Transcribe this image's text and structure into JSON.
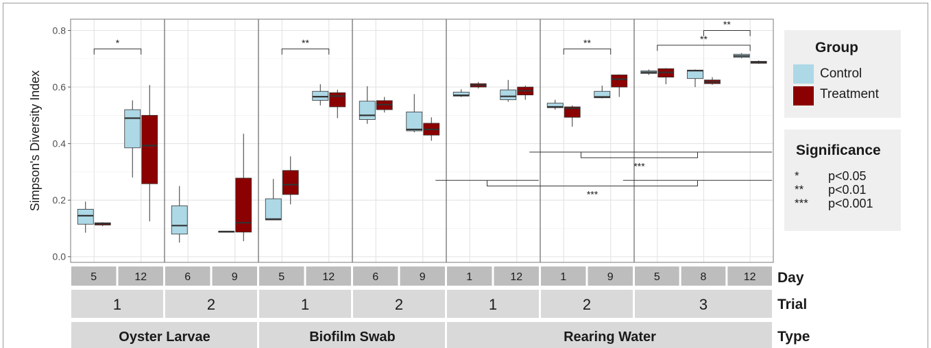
{
  "chart_data": {
    "type": "box",
    "ylabel": "Simpson's Diversity Index",
    "ylim": [
      -0.02,
      0.84
    ],
    "yticks": [
      "0.0",
      "0.2",
      "0.4",
      "0.6",
      "0.8"
    ],
    "ytick_values": [
      0.0,
      0.2,
      0.4,
      0.6,
      0.8
    ],
    "grid": true,
    "strip_labels": {
      "day": "Day",
      "trial": "Trial",
      "type": "Type"
    },
    "types": [
      {
        "name": "Oyster Larvae",
        "trials": [
          "1",
          "2"
        ]
      },
      {
        "name": "Biofilm Swab",
        "trials": [
          "1",
          "2"
        ]
      },
      {
        "name": "Rearing Water",
        "trials": [
          "1",
          "2",
          "3"
        ]
      }
    ],
    "panels": [
      {
        "type": "Oyster Larvae",
        "trial": "1",
        "days": [
          "5",
          "12"
        ],
        "boxes": [
          {
            "day": "5",
            "group": "Control",
            "min": 0.085,
            "q1": 0.115,
            "median": 0.145,
            "q3": 0.168,
            "max": 0.195
          },
          {
            "day": "5",
            "group": "Treatment",
            "min": 0.108,
            "q1": 0.112,
            "median": 0.117,
            "q3": 0.12,
            "max": 0.122
          },
          {
            "day": "12",
            "group": "Control",
            "min": 0.28,
            "q1": 0.385,
            "median": 0.49,
            "q3": 0.52,
            "max": 0.553
          },
          {
            "day": "12",
            "group": "Treatment",
            "min": 0.125,
            "q1": 0.258,
            "median": 0.393,
            "q3": 0.5,
            "max": 0.607
          }
        ]
      },
      {
        "type": "Oyster Larvae",
        "trial": "2",
        "days": [
          "6",
          "9"
        ],
        "boxes": [
          {
            "day": "6",
            "group": "Control",
            "min": 0.05,
            "q1": 0.08,
            "median": 0.11,
            "q3": 0.18,
            "max": 0.25
          },
          {
            "day": "9",
            "group": "Control",
            "min": 0.087,
            "q1": 0.088,
            "median": 0.089,
            "q3": 0.09,
            "max": 0.091
          },
          {
            "day": "9",
            "group": "Treatment",
            "min": 0.055,
            "q1": 0.087,
            "median": 0.12,
            "q3": 0.278,
            "max": 0.435
          }
        ]
      },
      {
        "type": "Biofilm Swab",
        "trial": "1",
        "days": [
          "5",
          "12"
        ],
        "boxes": [
          {
            "day": "5",
            "group": "Control",
            "min": 0.13,
            "q1": 0.13,
            "median": 0.133,
            "q3": 0.205,
            "max": 0.275
          },
          {
            "day": "5",
            "group": "Treatment",
            "min": 0.185,
            "q1": 0.22,
            "median": 0.255,
            "q3": 0.305,
            "max": 0.355
          },
          {
            "day": "12",
            "group": "Control",
            "min": 0.535,
            "q1": 0.553,
            "median": 0.566,
            "q3": 0.585,
            "max": 0.61
          },
          {
            "day": "12",
            "group": "Treatment",
            "min": 0.49,
            "q1": 0.53,
            "median": 0.568,
            "q3": 0.58,
            "max": 0.59
          }
        ]
      },
      {
        "type": "Biofilm Swab",
        "trial": "2",
        "days": [
          "6",
          "9"
        ],
        "boxes": [
          {
            "day": "6",
            "group": "Control",
            "min": 0.47,
            "q1": 0.485,
            "median": 0.5,
            "q3": 0.55,
            "max": 0.603
          },
          {
            "day": "6",
            "group": "Treatment",
            "min": 0.51,
            "q1": 0.52,
            "median": 0.538,
            "q3": 0.552,
            "max": 0.565
          },
          {
            "day": "9",
            "group": "Control",
            "min": 0.44,
            "q1": 0.445,
            "median": 0.45,
            "q3": 0.512,
            "max": 0.575
          },
          {
            "day": "9",
            "group": "Treatment",
            "min": 0.41,
            "q1": 0.43,
            "median": 0.45,
            "q3": 0.472,
            "max": 0.493
          }
        ]
      },
      {
        "type": "Rearing Water",
        "trial": "1",
        "days": [
          "1",
          "12"
        ],
        "boxes": [
          {
            "day": "1",
            "group": "Control",
            "min": 0.565,
            "q1": 0.568,
            "median": 0.571,
            "q3": 0.582,
            "max": 0.592
          },
          {
            "day": "1",
            "group": "Treatment",
            "min": 0.595,
            "q1": 0.6,
            "median": 0.607,
            "q3": 0.612,
            "max": 0.618
          },
          {
            "day": "12",
            "group": "Control",
            "min": 0.548,
            "q1": 0.555,
            "median": 0.567,
            "q3": 0.59,
            "max": 0.625
          },
          {
            "day": "12",
            "group": "Treatment",
            "min": 0.555,
            "q1": 0.572,
            "median": 0.587,
            "q3": 0.6,
            "max": 0.605
          }
        ]
      },
      {
        "type": "Rearing Water",
        "trial": "2",
        "days": [
          "1",
          "9"
        ],
        "boxes": [
          {
            "day": "1",
            "group": "Control",
            "min": 0.52,
            "q1": 0.527,
            "median": 0.53,
            "q3": 0.543,
            "max": 0.555
          },
          {
            "day": "1",
            "group": "Treatment",
            "min": 0.46,
            "q1": 0.493,
            "median": 0.525,
            "q3": 0.53,
            "max": 0.535
          },
          {
            "day": "9",
            "group": "Control",
            "min": 0.56,
            "q1": 0.562,
            "median": 0.565,
            "q3": 0.585,
            "max": 0.605
          },
          {
            "day": "9",
            "group": "Treatment",
            "min": 0.565,
            "q1": 0.6,
            "median": 0.628,
            "q3": 0.643,
            "max": 0.645
          }
        ]
      },
      {
        "type": "Rearing Water",
        "trial": "3",
        "days": [
          "5",
          "8",
          "12"
        ],
        "boxes": [
          {
            "day": "5",
            "group": "Control",
            "min": 0.643,
            "q1": 0.648,
            "median": 0.652,
            "q3": 0.657,
            "max": 0.662
          },
          {
            "day": "5",
            "group": "Treatment",
            "min": 0.61,
            "q1": 0.635,
            "median": 0.652,
            "q3": 0.665,
            "max": 0.667
          },
          {
            "day": "8",
            "group": "Control",
            "min": 0.6,
            "q1": 0.63,
            "median": 0.658,
            "q3": 0.66,
            "max": 0.662
          },
          {
            "day": "8",
            "group": "Treatment",
            "min": 0.608,
            "q1": 0.612,
            "median": 0.618,
            "q3": 0.625,
            "max": 0.635
          },
          {
            "day": "12",
            "group": "Control",
            "min": 0.702,
            "q1": 0.705,
            "median": 0.71,
            "q3": 0.716,
            "max": 0.72
          },
          {
            "day": "12",
            "group": "Treatment",
            "min": 0.682,
            "q1": 0.684,
            "median": 0.688,
            "q3": 0.691,
            "max": 0.694
          }
        ]
      }
    ],
    "brackets": [
      {
        "panel": 0,
        "from_day": "5",
        "to_day": "12",
        "y": 0.735,
        "label": "*"
      },
      {
        "panel": 2,
        "from_day": "5",
        "to_day": "12",
        "y": 0.735,
        "label": "**"
      },
      {
        "panel": 5,
        "from_day": "1",
        "to_day": "9",
        "y": 0.735,
        "label": "**"
      },
      {
        "panel": 6,
        "from_day": "5",
        "to_day": "12",
        "y": 0.748,
        "label": "**"
      },
      {
        "panel": 6,
        "from_day": "8",
        "to_day": "12",
        "y": 0.8,
        "label": "**"
      }
    ],
    "cross_brackets": [
      {
        "left": [
          5,
          0,
          5,
          1
        ],
        "right": [
          6,
          0,
          6,
          2
        ],
        "y": 0.37,
        "drop": 0.35,
        "label": "***"
      },
      {
        "left": [
          4,
          0,
          4,
          1
        ],
        "right": [
          6,
          0,
          6,
          2
        ],
        "y": 0.27,
        "drop": 0.25,
        "label": "***"
      }
    ],
    "colors": {
      "Control": "#add8e6",
      "Treatment": "#8b0000"
    },
    "legend": {
      "group_title": "Group",
      "groups": [
        "Control",
        "Treatment"
      ],
      "significance_title": "Significance",
      "significance": [
        {
          "symbol": "*",
          "label": "p<0.05"
        },
        {
          "symbol": "**",
          "label": "p<0.01"
        },
        {
          "symbol": "***",
          "label": "p<0.001"
        }
      ],
      "placement": "right"
    }
  }
}
